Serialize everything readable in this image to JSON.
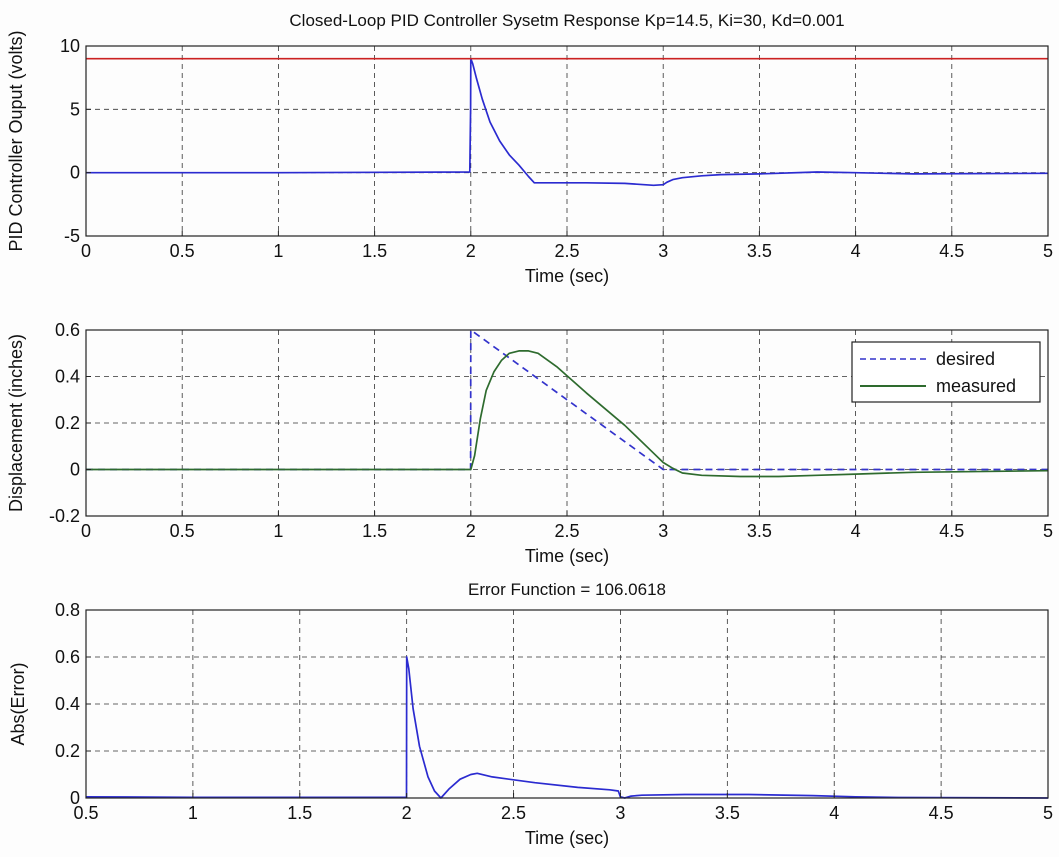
{
  "chart_data": [
    {
      "type": "line",
      "title": "Closed-Loop PID Controller Sysetm Response Kp=14.5, Ki=30, Kd=0.001",
      "xlabel": "Time (sec)",
      "ylabel": "PID Controller Ouput (volts)",
      "xlim": [
        0,
        5
      ],
      "ylim": [
        -5,
        10
      ],
      "xticks": [
        "0",
        "0.5",
        "1",
        "1.5",
        "2",
        "2.5",
        "3",
        "3.5",
        "4",
        "4.5",
        "5"
      ],
      "yticks": [
        "-5",
        "0",
        "5",
        "10"
      ],
      "grid": true,
      "legend": null,
      "series": [
        {
          "color": "#2b2bd0",
          "style": "solid",
          "x": [
            0,
            1.0,
            1.995,
            1.999,
            2.0,
            2.01,
            2.03,
            2.06,
            2.1,
            2.15,
            2.2,
            2.25,
            2.3,
            2.33,
            2.4,
            2.6,
            2.8,
            2.95,
            3.0,
            3.02,
            3.05,
            3.1,
            3.2,
            3.3,
            3.5,
            3.8,
            4.0,
            4.3,
            5.0
          ],
          "y": [
            0,
            0,
            0.05,
            5.0,
            9.0,
            8.6,
            7.4,
            5.8,
            4.0,
            2.5,
            1.4,
            0.6,
            -0.3,
            -0.8,
            -0.8,
            -0.8,
            -0.85,
            -1.0,
            -0.95,
            -0.75,
            -0.55,
            -0.4,
            -0.25,
            -0.15,
            -0.1,
            0.05,
            0.0,
            -0.1,
            -0.05
          ]
        },
        {
          "color": "#cc2222",
          "style": "solid",
          "x": [
            0,
            5
          ],
          "y": [
            9.0,
            9.0
          ]
        }
      ]
    },
    {
      "type": "line",
      "title": "",
      "xlabel": "Time (sec)",
      "ylabel": "Displacement (inches)",
      "xlim": [
        0,
        5
      ],
      "ylim": [
        -0.2,
        0.6
      ],
      "xticks": [
        "0",
        "0.5",
        "1",
        "1.5",
        "2",
        "2.5",
        "3",
        "3.5",
        "4",
        "4.5",
        "5"
      ],
      "yticks": [
        "-0.2",
        "0",
        "0.2",
        "0.4",
        "0.6"
      ],
      "grid": true,
      "legend": "top-right",
      "series": [
        {
          "name": "desired",
          "color": "#3333cc",
          "style": "dashed",
          "x": [
            0,
            1.999,
            2.0,
            3.0,
            3.05,
            5.0
          ],
          "y": [
            0,
            0,
            0.6,
            0.0,
            0.0,
            0.0
          ]
        },
        {
          "name": "measured",
          "color": "#2e6b2e",
          "style": "solid",
          "x": [
            0,
            1.0,
            2.0,
            2.02,
            2.05,
            2.08,
            2.12,
            2.16,
            2.2,
            2.25,
            2.3,
            2.35,
            2.45,
            2.6,
            2.8,
            2.95,
            3.0,
            3.05,
            3.1,
            3.2,
            3.4,
            3.6,
            3.8,
            4.0,
            4.3,
            5.0
          ],
          "y": [
            0,
            0,
            0,
            0.06,
            0.22,
            0.34,
            0.42,
            0.47,
            0.5,
            0.51,
            0.51,
            0.5,
            0.44,
            0.33,
            0.19,
            0.07,
            0.03,
            0.005,
            -0.015,
            -0.025,
            -0.03,
            -0.03,
            -0.025,
            -0.02,
            -0.012,
            -0.005
          ]
        }
      ]
    },
    {
      "type": "line",
      "title": "Error Function = 106.0618",
      "xlabel": "Time (sec)",
      "ylabel": "Abs(Error)",
      "xlim": [
        0.5,
        5
      ],
      "ylim": [
        0,
        0.8
      ],
      "xticks": [
        "0.5",
        "1",
        "1.5",
        "2",
        "2.5",
        "3",
        "3.5",
        "4",
        "4.5",
        "5"
      ],
      "yticks": [
        "0",
        "0.2",
        "0.4",
        "0.6",
        "0.8"
      ],
      "grid": true,
      "legend": null,
      "series": [
        {
          "color": "#2b2bd0",
          "style": "solid",
          "x": [
            0.5,
            1.0,
            1.999,
            2.0,
            2.01,
            2.03,
            2.06,
            2.1,
            2.13,
            2.16,
            2.2,
            2.25,
            2.3,
            2.33,
            2.4,
            2.6,
            2.8,
            2.95,
            2.99,
            3.0,
            3.02,
            3.05,
            3.1,
            3.3,
            3.6,
            3.9,
            4.1,
            4.3,
            5.0
          ],
          "y": [
            0.005,
            0.003,
            0.003,
            0.6,
            0.55,
            0.38,
            0.22,
            0.09,
            0.03,
            0.0,
            0.04,
            0.08,
            0.1,
            0.105,
            0.09,
            0.065,
            0.045,
            0.035,
            0.03,
            0.005,
            0.0,
            0.008,
            0.012,
            0.015,
            0.015,
            0.01,
            0.005,
            0.002,
            0.0
          ]
        }
      ]
    }
  ]
}
